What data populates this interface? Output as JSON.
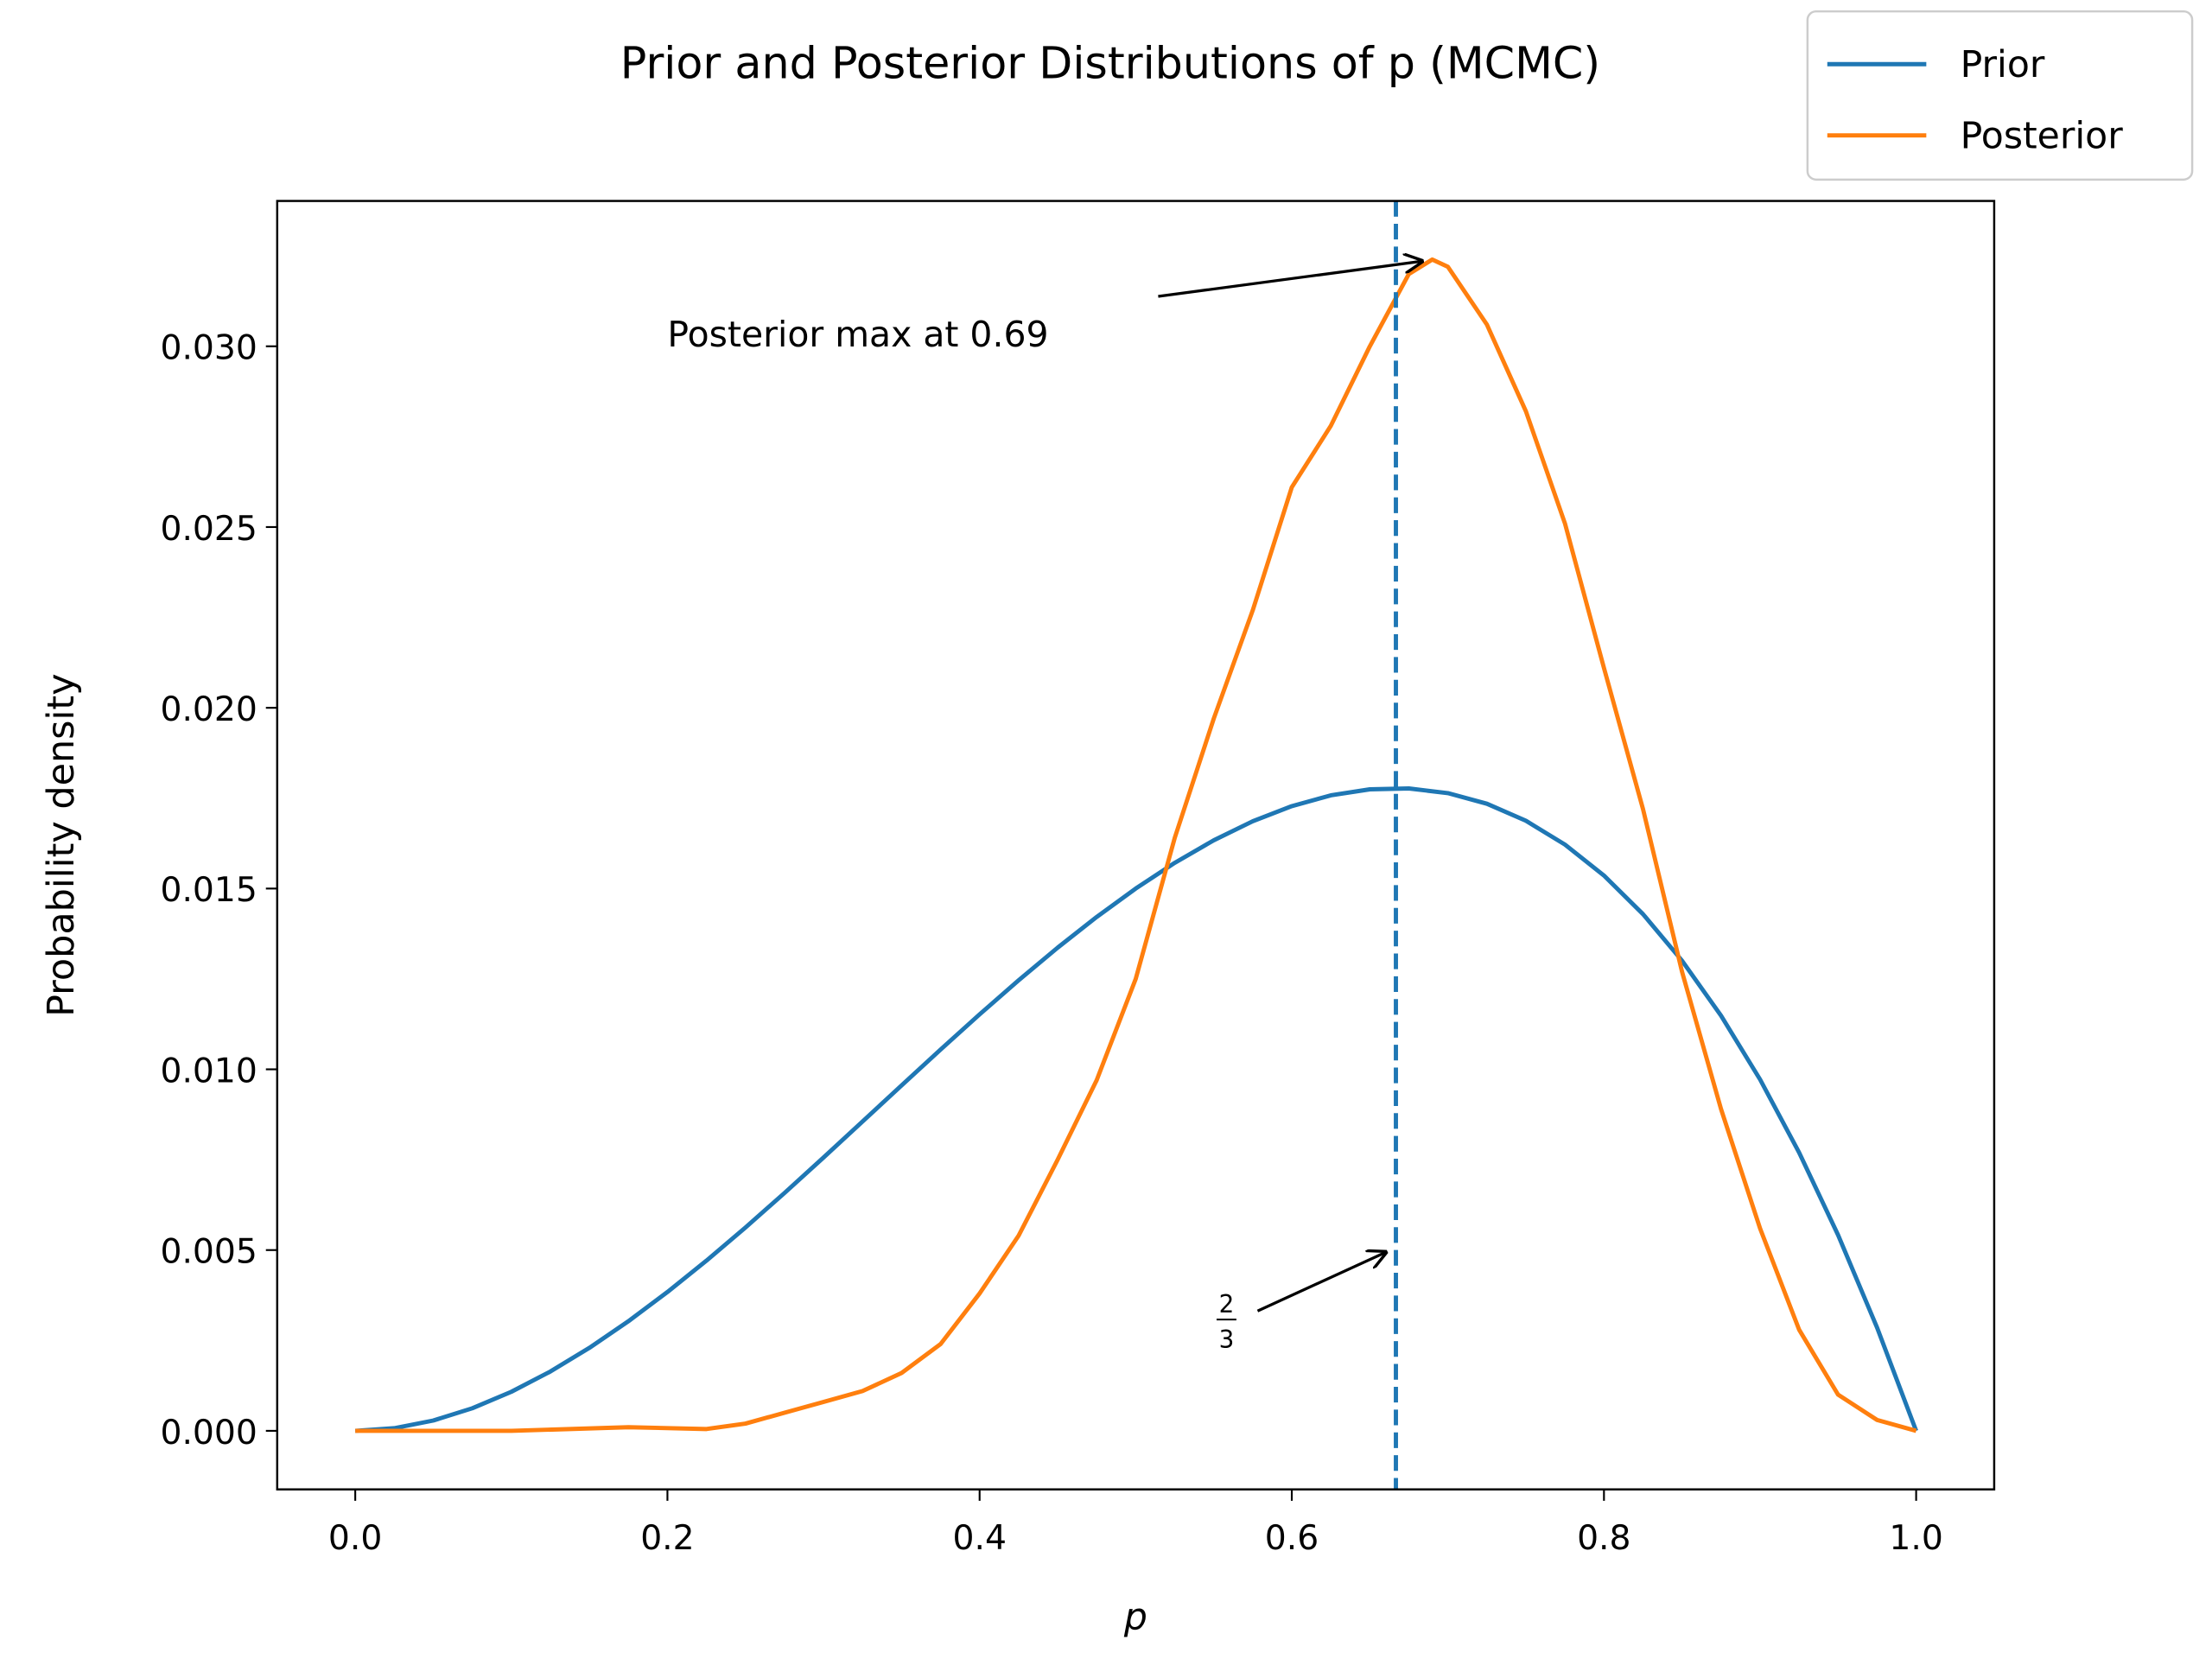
{
  "chart_data": {
    "type": "line",
    "title": "Prior and Posterior Distributions of p (MCMC)",
    "xlabel": "p",
    "ylabel": "Probability density",
    "xlim": [
      -0.05,
      1.05
    ],
    "ylim": [
      -0.00162,
      0.03402
    ],
    "xticks": [
      {
        "value": 0,
        "label": "0.0"
      },
      {
        "value": 0.2,
        "label": "0.2"
      },
      {
        "value": 0.4,
        "label": "0.4"
      },
      {
        "value": 0.6,
        "label": "0.6"
      },
      {
        "value": 0.8,
        "label": "0.8"
      },
      {
        "value": 1,
        "label": "1.0"
      }
    ],
    "yticks": [
      {
        "value": 0,
        "label": "0.000"
      },
      {
        "value": 0.005,
        "label": "0.005"
      },
      {
        "value": 0.01,
        "label": "0.010"
      },
      {
        "value": 0.015,
        "label": "0.015"
      },
      {
        "value": 0.02,
        "label": "0.020"
      },
      {
        "value": 0.025,
        "label": "0.025"
      },
      {
        "value": 0.03,
        "label": "0.030"
      }
    ],
    "legend": "upper right",
    "series": [
      {
        "name": "Prior",
        "color": "#1f77b4",
        "x": [
          0,
          0.025,
          0.05,
          0.075,
          0.1,
          0.125,
          0.15,
          0.175,
          0.2,
          0.225,
          0.25,
          0.275,
          0.3,
          0.325,
          0.35,
          0.375,
          0.4,
          0.425,
          0.45,
          0.475,
          0.5,
          0.525,
          0.55,
          0.575,
          0.6,
          0.625,
          0.65,
          0.675,
          0.7,
          0.725,
          0.75,
          0.775,
          0.8,
          0.825,
          0.85,
          0.875,
          0.9,
          0.925,
          0.95,
          0.975,
          1
        ],
        "values": [
          0,
          7.31e-05,
          0.000285,
          0.000624,
          0.00108,
          0.001641,
          0.002295,
          0.003032,
          0.00384,
          0.004708,
          0.005625,
          0.006579,
          0.00756,
          0.008556,
          0.009555,
          0.010547,
          0.01152,
          0.012463,
          0.013365,
          0.014214,
          0.015,
          0.015711,
          0.016335,
          0.016862,
          0.01728,
          0.017578,
          0.017745,
          0.017769,
          0.01764,
          0.017346,
          0.016875,
          0.016217,
          0.01536,
          0.014293,
          0.013005,
          0.011484,
          0.00972,
          0.0077,
          0.005415,
          0.002852,
          0
        ]
      },
      {
        "name": "Posterior",
        "color": "#ff7f0e",
        "x": [
          0,
          0.1,
          0.175,
          0.225,
          0.25,
          0.275,
          0.3,
          0.325,
          0.35,
          0.375,
          0.4,
          0.425,
          0.45,
          0.475,
          0.5,
          0.525,
          0.55,
          0.575,
          0.6,
          0.625,
          0.65,
          0.675,
          0.69,
          0.7,
          0.725,
          0.75,
          0.775,
          0.8,
          0.825,
          0.85,
          0.875,
          0.9,
          0.925,
          0.95,
          0.975,
          1
        ],
        "values": [
          0,
          0,
          0.0001,
          5e-05,
          0.0002,
          0.0005,
          0.0008,
          0.0011,
          0.0016,
          0.0024,
          0.0038,
          0.0054,
          0.0075,
          0.0097,
          0.0125,
          0.0164,
          0.0197,
          0.0227,
          0.0261,
          0.0278,
          0.03,
          0.032,
          0.0324,
          0.0322,
          0.0306,
          0.0282,
          0.0251,
          0.0211,
          0.0172,
          0.0127,
          0.0089,
          0.0056,
          0.0028,
          0.001,
          0.0003,
          0
        ]
      }
    ],
    "vline": {
      "x": 0.6667,
      "color": "#1f77b4"
    },
    "annotations": [
      {
        "text": "Posterior max at 0.69",
        "xy": [
          0.69,
          0.0324
        ],
        "xytext": [
          0.2,
          0.03
        ]
      },
      {
        "numerator": "2",
        "denominator": "3",
        "xy": [
          0.6667,
          0.005
        ],
        "xytext": [
          0.55,
          0.003
        ]
      }
    ]
  }
}
